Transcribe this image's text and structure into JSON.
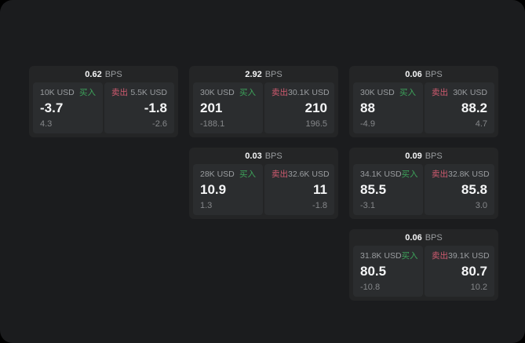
{
  "labels": {
    "bps_unit": "BPS",
    "buy": "买入",
    "sell": "卖出"
  },
  "colors": {
    "buy": "#3da35a",
    "sell": "#d05b70"
  },
  "cards": [
    {
      "row": 1,
      "col": 1,
      "bps": "0.62",
      "buy": {
        "amount": "10K USD",
        "value": "-3.7",
        "sub": "4.3"
      },
      "sell": {
        "amount": "5.5K USD",
        "value": "-1.8",
        "sub": "-2.6"
      }
    },
    {
      "row": 1,
      "col": 2,
      "bps": "2.92",
      "buy": {
        "amount": "30K USD",
        "value": "201",
        "sub": "-188.1"
      },
      "sell": {
        "amount": "30.1K USD",
        "value": "210",
        "sub": "196.5"
      }
    },
    {
      "row": 1,
      "col": 3,
      "bps": "0.06",
      "buy": {
        "amount": "30K USD",
        "value": "88",
        "sub": "-4.9"
      },
      "sell": {
        "amount": "30K USD",
        "value": "88.2",
        "sub": "4.7"
      }
    },
    {
      "row": 2,
      "col": 2,
      "bps": "0.03",
      "buy": {
        "amount": "28K USD",
        "value": "10.9",
        "sub": "1.3"
      },
      "sell": {
        "amount": "32.6K USD",
        "value": "11",
        "sub": "-1.8"
      }
    },
    {
      "row": 2,
      "col": 3,
      "bps": "0.09",
      "buy": {
        "amount": "34.1K USD",
        "value": "85.5",
        "sub": "-3.1"
      },
      "sell": {
        "amount": "32.8K USD",
        "value": "85.8",
        "sub": "3.0"
      }
    },
    {
      "row": 3,
      "col": 3,
      "bps": "0.06",
      "buy": {
        "amount": "31.8K USD",
        "value": "80.5",
        "sub": "-10.8"
      },
      "sell": {
        "amount": "39.1K USD",
        "value": "80.7",
        "sub": "10.2"
      }
    }
  ]
}
